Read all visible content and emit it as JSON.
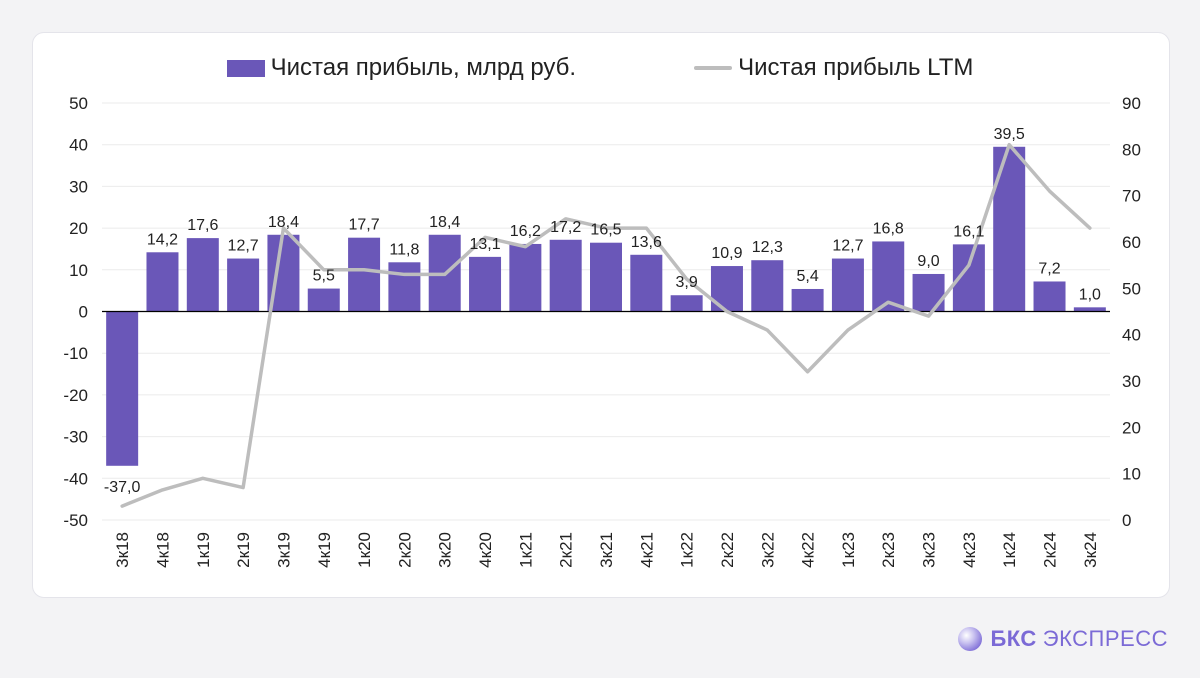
{
  "chart_data": {
    "type": "bar+line",
    "categories": [
      "3к18",
      "4к18",
      "1к19",
      "2к19",
      "3к19",
      "4к19",
      "1к20",
      "2к20",
      "3к20",
      "4к20",
      "1к21",
      "2к21",
      "3к21",
      "4к21",
      "1к22",
      "2к22",
      "3к22",
      "4к22",
      "1к23",
      "2к23",
      "3к23",
      "4к23",
      "1к24",
      "2к24",
      "3к24"
    ],
    "series": [
      {
        "name": "Чистая прибыль, млрд руб.",
        "type": "bar",
        "axis": "left",
        "values": [
          -37.0,
          14.2,
          17.6,
          12.7,
          18.4,
          5.5,
          17.7,
          11.8,
          18.4,
          13.1,
          16.2,
          17.2,
          16.5,
          13.6,
          3.9,
          10.9,
          12.3,
          5.4,
          12.7,
          16.8,
          9.0,
          16.1,
          39.5,
          7.2,
          1.0
        ],
        "labels": [
          "-37,0",
          "14,2",
          "17,6",
          "12,7",
          "18,4",
          "5,5",
          "17,7",
          "11,8",
          "18,4",
          "13,1",
          "16,2",
          "17,2",
          "16,5",
          "13,6",
          "3,9",
          "10,9",
          "12,3",
          "5,4",
          "12,7",
          "16,8",
          "9,0",
          "16,1",
          "39,5",
          "7,2",
          "1,0"
        ]
      },
      {
        "name": "Чистая прибыль LTM",
        "type": "line",
        "axis": "right",
        "values": [
          3,
          6.5,
          9,
          7,
          63,
          54,
          54,
          53,
          53,
          61,
          59,
          65,
          63,
          63,
          52,
          45,
          41,
          32,
          41,
          47,
          44,
          55,
          81,
          71,
          63
        ]
      }
    ],
    "y_left": {
      "min": -50,
      "max": 50,
      "ticks": [
        "50",
        "40",
        "30",
        "20",
        "10",
        "0",
        "-10",
        "-20",
        "-30",
        "-40",
        "-50"
      ]
    },
    "y_right": {
      "min": 0,
      "max": 90,
      "ticks": [
        "90",
        "80",
        "70",
        "60",
        "50",
        "40",
        "30",
        "20",
        "10",
        "0"
      ]
    },
    "grid": true,
    "legend_position": "top-center"
  },
  "colors": {
    "bar": "#6a57b8",
    "line": "#bdbdbd",
    "text": "#222222",
    "grid": "#ebebeb",
    "brand": "#7b6ad6"
  },
  "brand": {
    "strong": "БКС",
    "rest": "ЭКСПРЕСС"
  }
}
